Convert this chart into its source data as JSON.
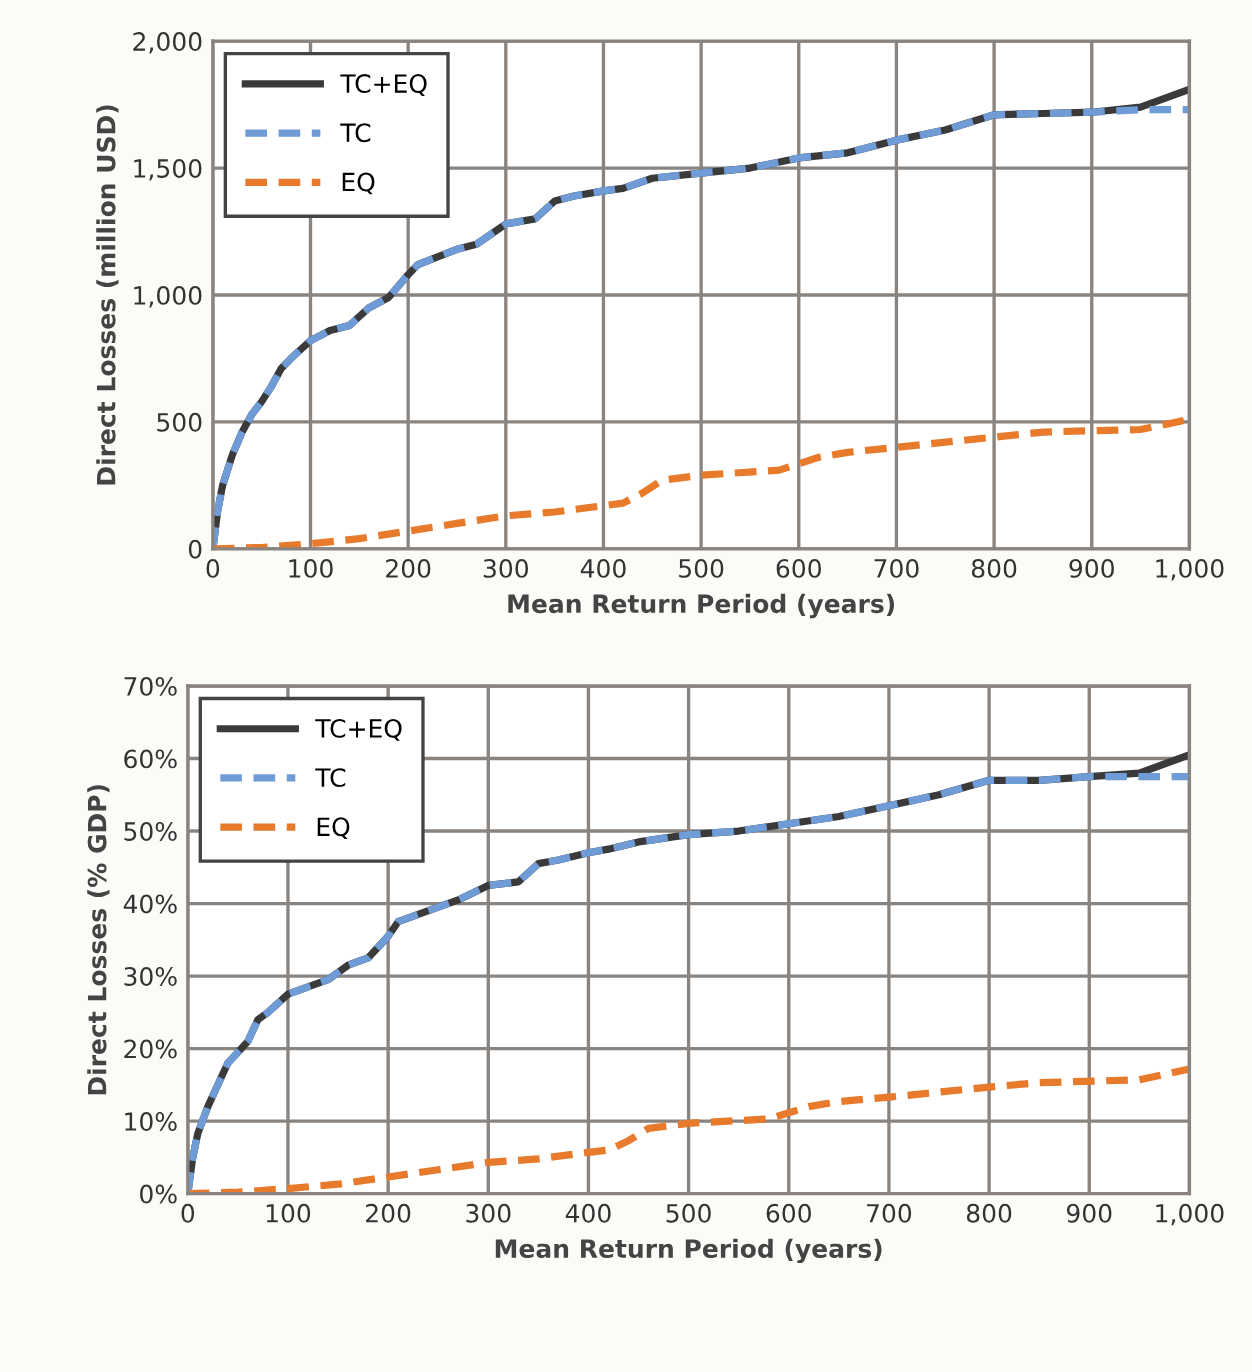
{
  "chart_data": [
    {
      "type": "line",
      "xlabel": "Mean Return Period (years)",
      "ylabel": "Direct Losses (million USD)",
      "xlim": [
        0,
        1000
      ],
      "xticks": [
        0,
        100,
        200,
        300,
        400,
        500,
        600,
        700,
        800,
        900,
        {
          "value": 1000,
          "label": "1,000"
        }
      ],
      "ylim": [
        0,
        2000
      ],
      "yticks": [
        0,
        500,
        {
          "value": 1000,
          "label": "1,000"
        },
        {
          "value": 1500,
          "label": "1,500"
        },
        {
          "value": 2000,
          "label": "2,000"
        }
      ],
      "grid": true,
      "legend": "top left",
      "marker": "none",
      "series": [
        {
          "name": "TC+EQ",
          "color": "#3a3a3a",
          "line_style": "solid",
          "x": [
            0,
            5,
            10,
            20,
            30,
            40,
            50,
            60,
            70,
            80,
            100,
            120,
            140,
            160,
            180,
            200,
            210,
            250,
            270,
            300,
            330,
            350,
            370,
            400,
            420,
            450,
            500,
            550,
            600,
            650,
            700,
            750,
            800,
            850,
            900,
            950,
            1000
          ],
          "values": [
            0,
            150,
            250,
            370,
            460,
            530,
            580,
            640,
            710,
            750,
            820,
            860,
            880,
            950,
            990,
            1080,
            1120,
            1180,
            1200,
            1280,
            1300,
            1370,
            1390,
            1410,
            1420,
            1460,
            1480,
            1500,
            1540,
            1560,
            1610,
            1650,
            1710,
            1715,
            1720,
            1740,
            1810
          ]
        },
        {
          "name": "TC",
          "color": "#6f9bd6",
          "line_style": "dashed",
          "x": [
            0,
            5,
            10,
            20,
            30,
            40,
            50,
            60,
            70,
            80,
            100,
            120,
            140,
            160,
            180,
            200,
            210,
            250,
            270,
            300,
            330,
            350,
            370,
            400,
            420,
            450,
            500,
            550,
            600,
            650,
            700,
            750,
            800,
            850,
            900,
            950,
            1000
          ],
          "values": [
            0,
            150,
            250,
            370,
            460,
            530,
            580,
            640,
            710,
            750,
            820,
            860,
            880,
            950,
            990,
            1080,
            1120,
            1180,
            1200,
            1280,
            1300,
            1370,
            1390,
            1410,
            1420,
            1460,
            1480,
            1500,
            1540,
            1560,
            1610,
            1650,
            1710,
            1715,
            1720,
            1730,
            1730
          ]
        },
        {
          "name": "EQ",
          "color": "#e87a2c",
          "line_style": "dashed",
          "x": [
            0,
            50,
            100,
            150,
            200,
            250,
            300,
            350,
            400,
            420,
            440,
            460,
            500,
            580,
            620,
            650,
            700,
            800,
            850,
            950,
            1000
          ],
          "values": [
            0,
            5,
            20,
            40,
            70,
            100,
            130,
            145,
            170,
            180,
            220,
            270,
            290,
            310,
            360,
            380,
            400,
            440,
            460,
            470,
            510
          ]
        }
      ]
    },
    {
      "type": "line",
      "xlabel": "Mean Return Period (years)",
      "ylabel": "Direct Losses (% GDP)",
      "xlim": [
        0,
        1000
      ],
      "xticks": [
        0,
        100,
        200,
        300,
        400,
        500,
        600,
        700,
        800,
        900,
        {
          "value": 1000,
          "label": "1,000"
        }
      ],
      "ylim": [
        0,
        70
      ],
      "yticks": [
        {
          "value": 0,
          "label": "0%"
        },
        {
          "value": 10,
          "label": "10%"
        },
        {
          "value": 20,
          "label": "20%"
        },
        {
          "value": 30,
          "label": "30%"
        },
        {
          "value": 40,
          "label": "40%"
        },
        {
          "value": 50,
          "label": "50%"
        },
        {
          "value": 60,
          "label": "60%"
        },
        {
          "value": 70,
          "label": "70%"
        }
      ],
      "grid": true,
      "legend": "top left",
      "marker": "none",
      "series": [
        {
          "name": "TC+EQ",
          "color": "#3a3a3a",
          "line_style": "solid",
          "x": [
            0,
            5,
            10,
            20,
            30,
            40,
            50,
            60,
            70,
            80,
            100,
            120,
            140,
            160,
            180,
            200,
            210,
            250,
            270,
            300,
            330,
            350,
            370,
            400,
            420,
            450,
            500,
            550,
            600,
            650,
            700,
            750,
            800,
            850,
            900,
            950,
            1000
          ],
          "values": [
            0,
            5,
            8.3,
            12,
            15,
            18,
            19.5,
            21,
            24,
            25,
            27.5,
            28.5,
            29.5,
            31.5,
            32.5,
            35.5,
            37.5,
            39.5,
            40.5,
            42.5,
            43,
            45.5,
            46,
            47,
            47.5,
            48.5,
            49.5,
            50,
            51,
            52,
            53.5,
            55,
            57,
            57,
            57.5,
            58,
            60.5
          ]
        },
        {
          "name": "TC",
          "color": "#6f9bd6",
          "line_style": "dashed",
          "x": [
            0,
            5,
            10,
            20,
            30,
            40,
            50,
            60,
            70,
            80,
            100,
            120,
            140,
            160,
            180,
            200,
            210,
            250,
            270,
            300,
            330,
            350,
            370,
            400,
            420,
            450,
            500,
            550,
            600,
            650,
            700,
            750,
            800,
            850,
            900,
            950,
            1000
          ],
          "values": [
            0,
            5,
            8.3,
            12,
            15,
            18,
            19.5,
            21,
            24,
            25,
            27.5,
            28.5,
            29.5,
            31.5,
            32.5,
            35.5,
            37.5,
            39.5,
            40.5,
            42.5,
            43,
            45.5,
            46,
            47,
            47.5,
            48.5,
            49.5,
            50,
            51,
            52,
            53.5,
            55,
            57,
            57,
            57.5,
            57.5,
            57.5
          ]
        },
        {
          "name": "EQ",
          "color": "#e87a2c",
          "line_style": "dashed",
          "x": [
            0,
            50,
            100,
            150,
            200,
            250,
            300,
            350,
            400,
            420,
            440,
            460,
            500,
            580,
            620,
            650,
            700,
            800,
            850,
            950,
            1000
          ],
          "values": [
            0,
            0.2,
            0.7,
            1.3,
            2.3,
            3.3,
            4.3,
            4.8,
            5.7,
            6,
            7.3,
            9,
            9.7,
            10.3,
            12,
            12.7,
            13.3,
            14.7,
            15.3,
            15.7,
            17.2
          ]
        }
      ]
    }
  ]
}
